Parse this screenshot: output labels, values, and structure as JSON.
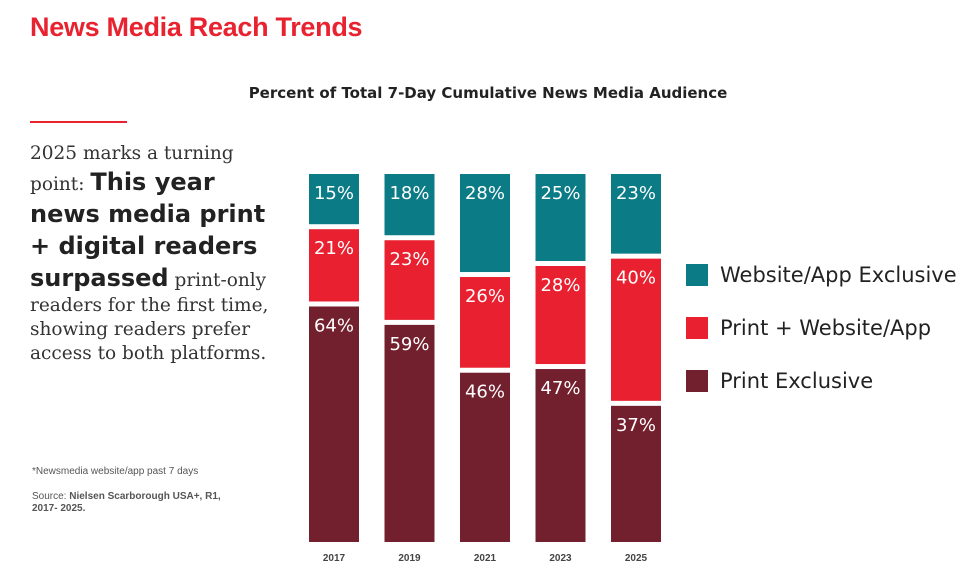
{
  "page": {
    "title": "News Media Reach Trends",
    "headline_pre": "2025 marks a turning point: ",
    "headline_bold": "This year news media print + digital readers surpassed",
    "headline_post": " print-only readers for the first time, showing readers prefer access to both platforms.",
    "footnote": "*Newsmedia website/app past 7 days",
    "source_label": "Source: ",
    "source_bold": "Nielsen Scarborough USA+, R1, 2017- 2025.",
    "colors": {
      "title": "#e8232f",
      "divider": "#e8232f"
    }
  },
  "chart_data": {
    "type": "bar",
    "stacked": true,
    "title": "Percent of Total 7-Day Cumulative News Media Audience",
    "categories": [
      "2017",
      "2019",
      "2021",
      "2023",
      "2025"
    ],
    "series": [
      {
        "name": "Print Exclusive",
        "color": "#73202e",
        "values": [
          64,
          59,
          46,
          47,
          37
        ]
      },
      {
        "name": "Print + Website/App",
        "color": "#e8202f",
        "values": [
          21,
          23,
          26,
          28,
          40
        ]
      },
      {
        "name": "Website/App Exclusive",
        "color": "#0b7b86",
        "values": [
          15,
          18,
          28,
          25,
          23
        ]
      }
    ],
    "value_suffix": "%",
    "ylim": [
      0,
      100
    ],
    "legend_position": "right",
    "legend_order": [
      "Website/App Exclusive",
      "Print + Website/App",
      "Print Exclusive"
    ],
    "grid": false
  }
}
